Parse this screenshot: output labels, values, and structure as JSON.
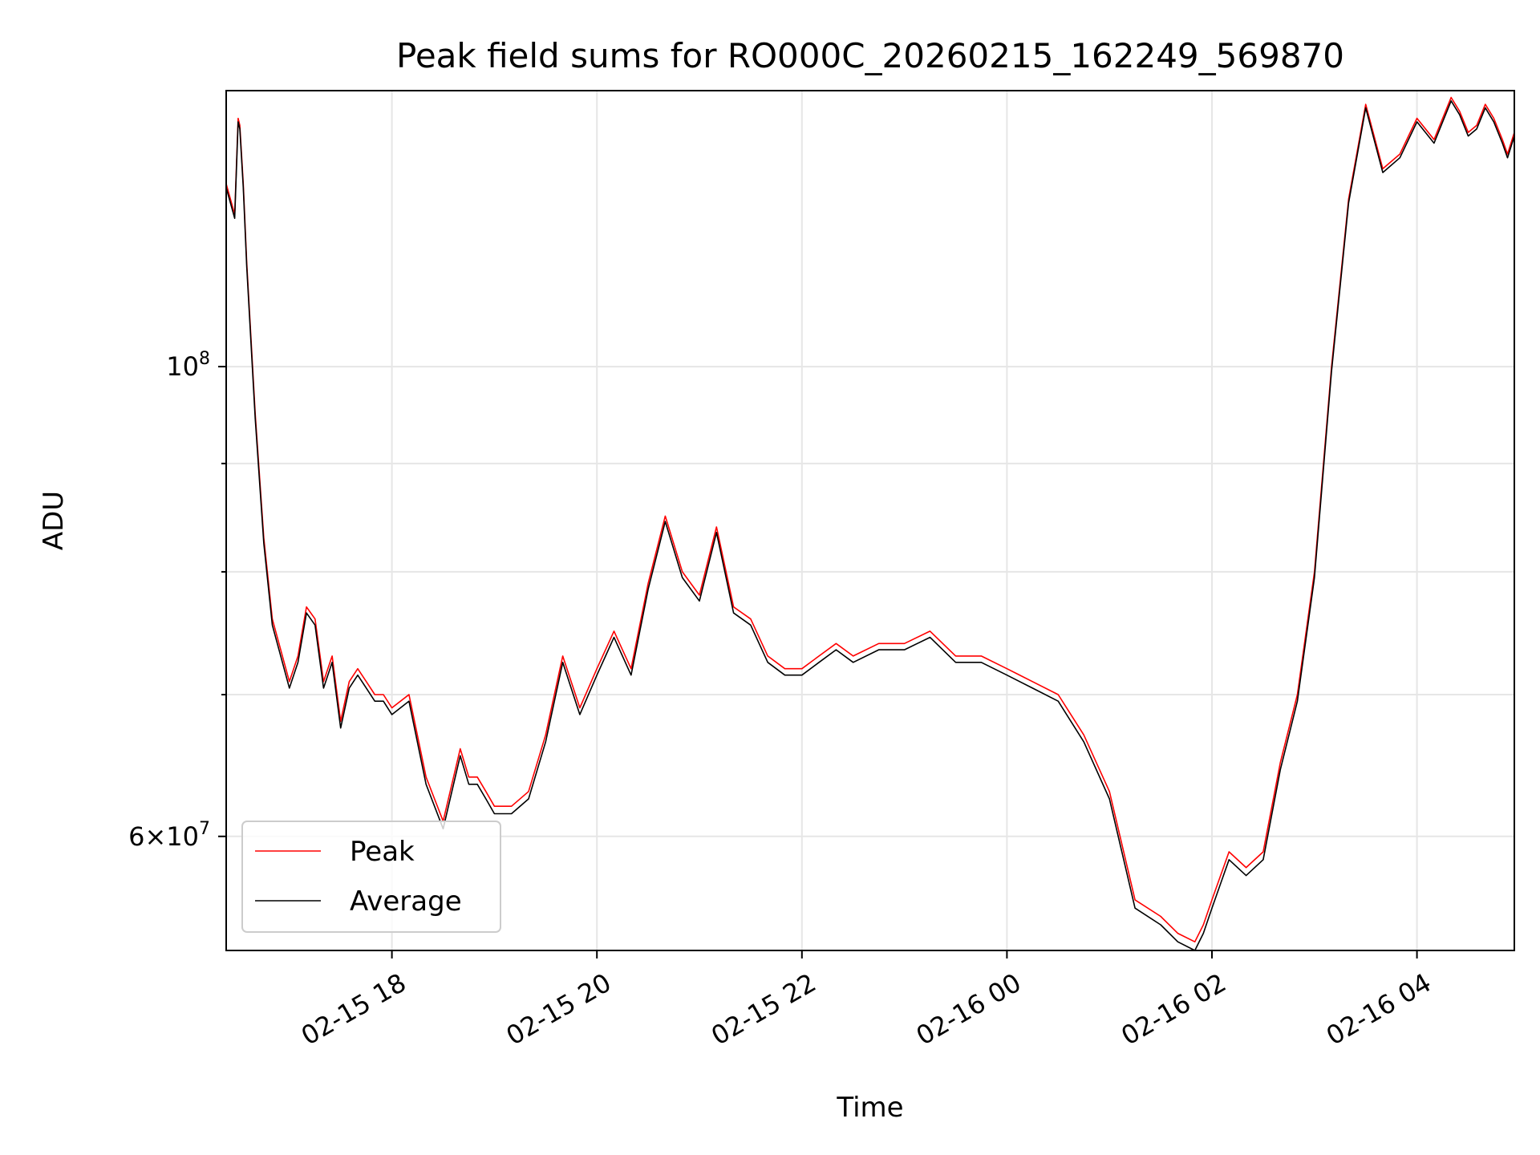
{
  "chart_data": {
    "type": "line",
    "title": "Peak field sums for RO000C_20260215_162249_569870",
    "xlabel": "Time",
    "ylabel": "ADU",
    "yscale": "log",
    "ylim": [
      53000000,
      135000000
    ],
    "xlim": [
      "02-15 16:23",
      "02-16 04:57"
    ],
    "grid": true,
    "legend_position": "lower-left",
    "x_ticks": [
      "02-15 18",
      "02-15 20",
      "02-15 22",
      "02-16 00",
      "02-16 02",
      "02-16 04"
    ],
    "y_ticks": [
      {
        "value": 100000000,
        "mantissa": "",
        "base": "10",
        "exponent": "8"
      },
      {
        "value": 60000000,
        "mantissa": "6",
        "base": "10",
        "exponent": "7"
      }
    ],
    "x": [
      "02-15 16:23",
      "02-15 16:28",
      "02-15 16:30",
      "02-15 16:31",
      "02-15 16:33",
      "02-15 16:35",
      "02-15 16:40",
      "02-15 16:45",
      "02-15 16:50",
      "02-15 17:00",
      "02-15 17:05",
      "02-15 17:10",
      "02-15 17:15",
      "02-15 17:20",
      "02-15 17:25",
      "02-15 17:30",
      "02-15 17:35",
      "02-15 17:40",
      "02-15 17:45",
      "02-15 17:50",
      "02-15 17:55",
      "02-15 18:00",
      "02-15 18:10",
      "02-15 18:20",
      "02-15 18:30",
      "02-15 18:40",
      "02-15 18:45",
      "02-15 18:50",
      "02-15 18:55",
      "02-15 19:00",
      "02-15 19:10",
      "02-15 19:20",
      "02-15 19:30",
      "02-15 19:40",
      "02-15 19:50",
      "02-15 20:00",
      "02-15 20:10",
      "02-15 20:20",
      "02-15 20:30",
      "02-15 20:40",
      "02-15 20:50",
      "02-15 21:00",
      "02-15 21:10",
      "02-15 21:20",
      "02-15 21:30",
      "02-15 21:40",
      "02-15 21:50",
      "02-15 22:00",
      "02-15 22:10",
      "02-15 22:20",
      "02-15 22:30",
      "02-15 22:45",
      "02-15 23:00",
      "02-15 23:15",
      "02-15 23:30",
      "02-15 23:45",
      "02-16 00:00",
      "02-16 00:15",
      "02-16 00:30",
      "02-16 00:45",
      "02-16 01:00",
      "02-16 01:15",
      "02-16 01:30",
      "02-16 01:40",
      "02-16 01:50",
      "02-16 01:55",
      "02-16 02:00",
      "02-16 02:10",
      "02-16 02:20",
      "02-16 02:30",
      "02-16 02:40",
      "02-16 02:50",
      "02-16 03:00",
      "02-16 03:10",
      "02-16 03:20",
      "02-16 03:30",
      "02-16 03:40",
      "02-16 03:50",
      "02-16 04:00",
      "02-16 04:10",
      "02-16 04:20",
      "02-16 04:25",
      "02-16 04:30",
      "02-16 04:35",
      "02-16 04:40",
      "02-16 04:45",
      "02-16 04:50",
      "02-16 04:53",
      "02-16 04:57"
    ],
    "series": [
      {
        "name": "Peak",
        "color": "#ff0000",
        "values": [
          122000000,
          118000000,
          131000000,
          130000000,
          122000000,
          112000000,
          95000000,
          83000000,
          76000000,
          71000000,
          73000000,
          77000000,
          76000000,
          71000000,
          73000000,
          68000000,
          71000000,
          72000000,
          71000000,
          70000000,
          70000000,
          69000000,
          70000000,
          64000000,
          61000000,
          66000000,
          64000000,
          64000000,
          63000000,
          62000000,
          62000000,
          63000000,
          67000000,
          73000000,
          69000000,
          72000000,
          75000000,
          72000000,
          79000000,
          85000000,
          80000000,
          78000000,
          84000000,
          77000000,
          76000000,
          73000000,
          72000000,
          72000000,
          73000000,
          74000000,
          73000000,
          74000000,
          74000000,
          75000000,
          73000000,
          73000000,
          72000000,
          71000000,
          70000000,
          67000000,
          63000000,
          56000000,
          55000000,
          54000000,
          53500000,
          54500000,
          56000000,
          59000000,
          58000000,
          59000000,
          65000000,
          70000000,
          80000000,
          100000000,
          120000000,
          133000000,
          124000000,
          126000000,
          131000000,
          128000000,
          134000000,
          132000000,
          129000000,
          130000000,
          133000000,
          131000000,
          128000000,
          126000000,
          129000000
        ]
      },
      {
        "name": "Average",
        "color": "#000000",
        "values": [
          121500000,
          117500000,
          130500000,
          129500000,
          121500000,
          111500000,
          94500000,
          82500000,
          75500000,
          70500000,
          72500000,
          76500000,
          75500000,
          70500000,
          72500000,
          67500000,
          70500000,
          71500000,
          70500000,
          69500000,
          69500000,
          68500000,
          69500000,
          63500000,
          60500000,
          65500000,
          63500000,
          63500000,
          62500000,
          61500000,
          61500000,
          62500000,
          66500000,
          72500000,
          68500000,
          71500000,
          74500000,
          71500000,
          78500000,
          84500000,
          79500000,
          77500000,
          83500000,
          76500000,
          75500000,
          72500000,
          71500000,
          71500000,
          72500000,
          73500000,
          72500000,
          73500000,
          73500000,
          74500000,
          72500000,
          72500000,
          71500000,
          70500000,
          69500000,
          66500000,
          62500000,
          55500000,
          54500000,
          53500000,
          53000000,
          54000000,
          55500000,
          58500000,
          57500000,
          58500000,
          64500000,
          69500000,
          79500000,
          99500000,
          119500000,
          132500000,
          123500000,
          125500000,
          130500000,
          127500000,
          133500000,
          131500000,
          128500000,
          129500000,
          132500000,
          130500000,
          127500000,
          125500000,
          128500000
        ]
      }
    ]
  }
}
